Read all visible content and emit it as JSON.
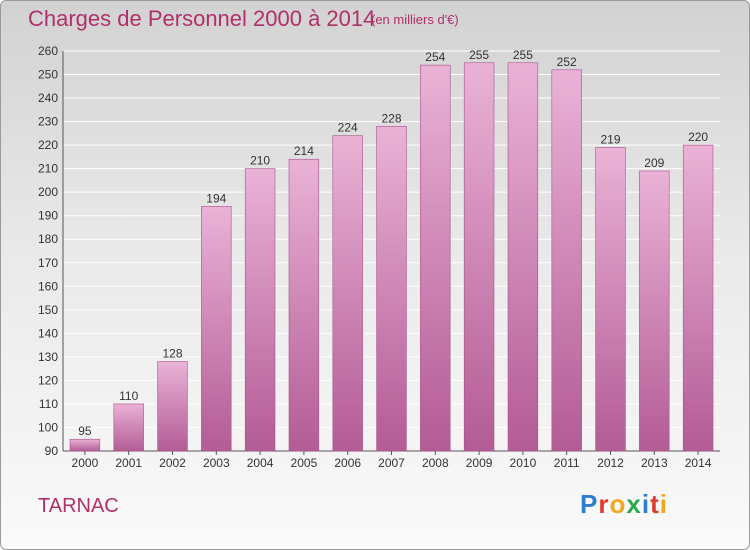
{
  "header": {
    "title": "Charges de Personnel 2000 à 2014",
    "subtitle": "(en milliers d'€)"
  },
  "footer": {
    "commune": "TARNAC",
    "logo_text": "Proxiti",
    "logo_colors": [
      "#2f7fd0",
      "#e03a2c",
      "#f2a81d",
      "#2aa84a",
      "#2f7fd0",
      "#e03a2c",
      "#f2a81d"
    ]
  },
  "colors": {
    "text_accent": "#b0306a",
    "bar_top": "#eab2d6",
    "bar_bottom": "#b35c95",
    "grid": "#ffffff",
    "axis_text": "#333333"
  },
  "chart_data": {
    "type": "bar",
    "title": "Charges de Personnel 2000 à 2014",
    "subtitle": "(en milliers d'€)",
    "categories": [
      "2000",
      "2001",
      "2002",
      "2003",
      "2004",
      "2005",
      "2006",
      "2007",
      "2008",
      "2009",
      "2010",
      "2011",
      "2012",
      "2013",
      "2014"
    ],
    "values": [
      95,
      110,
      128,
      194,
      210,
      214,
      224,
      228,
      254,
      255,
      255,
      252,
      219,
      209,
      220
    ],
    "ylim": [
      90,
      260
    ],
    "yticks": [
      90,
      100,
      110,
      120,
      130,
      140,
      150,
      160,
      170,
      180,
      190,
      200,
      210,
      220,
      230,
      240,
      250,
      260
    ],
    "grid": true,
    "data_labels": true
  }
}
